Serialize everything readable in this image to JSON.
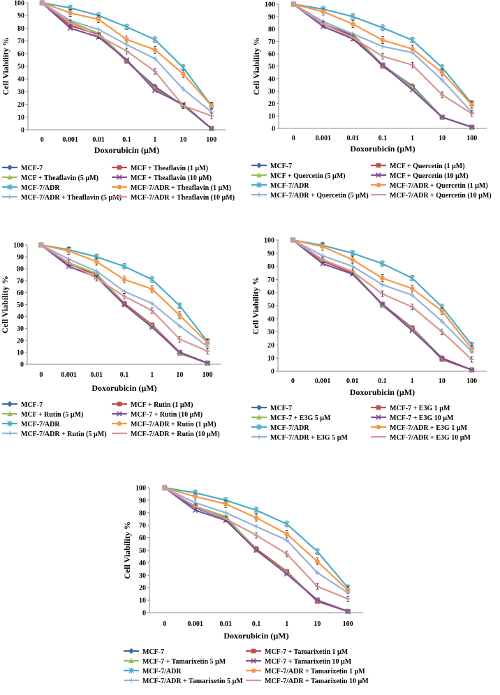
{
  "charts": [
    {
      "ylabel": "Cell Viability %",
      "xlabel": "Doxorubicin (µM)",
      "x_ticks": [
        "0",
        "0.001",
        "0.01",
        "0.1",
        "1",
        "10",
        "100"
      ],
      "y_ticks": [
        "0",
        "10",
        "20",
        "30",
        "40",
        "50",
        "60",
        "70",
        "80",
        "90",
        "100"
      ],
      "legend": [
        "MCF-7",
        "MCF + Theaflavin (1 µM)",
        "MCF + Theaflavin (5 µM)",
        "MCF + Theaflavin (10 µM)",
        "MCF-7/ADR",
        "MCF-7/ADR + Theaflavin (1 µM)",
        "MCF-7/ADR + Theaflavin (5 µM)",
        "MCF-7/ADR + Theaflavin (10 µM)"
      ]
    },
    {
      "ylabel": "Cell Viability %",
      "xlabel": "Doxorubicin (µM)",
      "x_ticks": [
        "0",
        "0.001",
        "0.01",
        "0.1",
        "1",
        "10",
        "100"
      ],
      "y_ticks": [
        "0",
        "10",
        "20",
        "30",
        "40",
        "50",
        "60",
        "70",
        "80",
        "90",
        "100"
      ],
      "legend": [
        "MCF-7",
        "MCF + Quercetin (1 µM)",
        "MCF + Quercetin (5 µM)",
        "MCF + Quercetin (10 µM)",
        "MCF-7/ADR",
        "MCF-7/ADR + Quercetin (1 µM)",
        "MCF-7/ADR + Quercetin (5 µM)",
        "MCF-7/ADR + Quercetin (10 µM)"
      ]
    },
    {
      "ylabel": "Cell Viability %",
      "xlabel": "Doxorubicin (µM)",
      "x_ticks": [
        "0",
        "0.001",
        "0.01",
        "0.1",
        "1",
        "10",
        "100"
      ],
      "y_ticks": [
        "0",
        "10",
        "20",
        "30",
        "40",
        "50",
        "60",
        "70",
        "80",
        "90",
        "100"
      ],
      "legend": [
        "MCF-7",
        "MCF + Rutin (1 µM)",
        "MCF + Rutin (5 µM)",
        "MCF-7 + Rutin (10 µM)",
        "MCF-7/ADR",
        "MCF-7/ADR + Rutin (1 µM)",
        "MCF-7/ADR + Rutin (5 µM)",
        "MCF-7/ADR + Rutin (10 µM)"
      ]
    },
    {
      "ylabel": "Cell Viability %",
      "xlabel": "Doxorubicin (µM)",
      "x_ticks": [
        "0",
        "0.001",
        "0.01",
        "0.1",
        "1",
        "10",
        "100"
      ],
      "y_ticks": [
        "0",
        "10",
        "20",
        "30",
        "40",
        "50",
        "60",
        "70",
        "80",
        "90",
        "100"
      ],
      "legend": [
        "MCF-7",
        "MCF-7 + E3G 1 µM",
        "MCF-7 + E3G 5 µM",
        "MCF-7 + E3G 10 µM",
        "MCF-7/ADR",
        "MCF-7/ADR + E3G 1 µM",
        "MCF-7/ADR + E3G 5 µM",
        "MCF-7/ADR + E3G 10 µM"
      ]
    },
    {
      "ylabel": "Cell Viability %",
      "xlabel": "Doxorubicin (µM)",
      "x_ticks": [
        "0",
        "0.001",
        "0.01",
        "0.1",
        "1",
        "10",
        "100"
      ],
      "y_ticks": [
        "0",
        "10",
        "20",
        "30",
        "40",
        "50",
        "60",
        "70",
        "80",
        "90",
        "100"
      ],
      "legend": [
        "MCF-7",
        "MCF-7 + Tamarixetin 1 µM",
        "MCF-7 + Tamarixetin 5 µM",
        "MCF-7 + Tamarixetin 10 µM",
        "MCF-7/ADR",
        "MCF-7/ADR + Tamarixetin 1 µM",
        "MCF-7/ADR + Tamarixetin 5 µM",
        "MCF-7/ADR + Tamarixetin 10 µM"
      ]
    }
  ],
  "series_colors": [
    "#3a6ea5",
    "#c0504d",
    "#9bbb59",
    "#7f4f9f",
    "#4bacc6",
    "#f79646",
    "#95b3d7",
    "#d99594"
  ],
  "series_markers": [
    "diamond",
    "square",
    "triangle",
    "x",
    "star",
    "circle",
    "plus",
    "dash"
  ],
  "chart_data": [
    {
      "type": "line",
      "title": "",
      "xlabel": "Doxorubicin (µM)",
      "ylabel": "Cell Viability %",
      "ylim": [
        0,
        100
      ],
      "categories": [
        "0",
        "0.001",
        "0.01",
        "0.1",
        "1",
        "10",
        "100"
      ],
      "series": [
        {
          "name": "MCF-7",
          "values": [
            100,
            82,
            75,
            54,
            34,
            19,
            1
          ]
        },
        {
          "name": "MCF + Theaflavin (1 µM)",
          "values": [
            100,
            82,
            75,
            54,
            33,
            19,
            1
          ]
        },
        {
          "name": "MCF + Theaflavin (5 µM)",
          "values": [
            100,
            85,
            76,
            55,
            32,
            19,
            1
          ]
        },
        {
          "name": "MCF + Theaflavin (10 µM)",
          "values": [
            100,
            80,
            73,
            55,
            31,
            20,
            1
          ]
        },
        {
          "name": "MCF-7/ADR",
          "values": [
            100,
            96,
            90,
            81,
            71,
            49,
            19
          ]
        },
        {
          "name": "MCF-7/ADR + Theaflavin (1 µM)",
          "values": [
            100,
            92,
            87,
            71,
            63,
            44,
            19
          ]
        },
        {
          "name": "MCF-7/ADR + Theaflavin (5 µM)",
          "values": [
            100,
            86,
            79,
            67,
            56,
            32,
            14
          ]
        },
        {
          "name": "MCF-7/ADR + Theaflavin (10 µM)",
          "values": [
            100,
            84,
            74,
            62,
            46,
            19,
            11
          ]
        }
      ]
    },
    {
      "type": "line",
      "title": "",
      "xlabel": "Doxorubicin (µM)",
      "ylabel": "Cell Viability %",
      "ylim": [
        0,
        100
      ],
      "categories": [
        "0",
        "0.001",
        "0.01",
        "0.1",
        "1",
        "10",
        "100"
      ],
      "series": [
        {
          "name": "MCF-7",
          "values": [
            100,
            84,
            75,
            51,
            34,
            9,
            1
          ]
        },
        {
          "name": "MCF + Quercetin (1 µM)",
          "values": [
            100,
            84,
            74,
            50,
            33,
            9,
            1
          ]
        },
        {
          "name": "MCF + Quercetin (5 µM)",
          "values": [
            100,
            86,
            76,
            51,
            33,
            9,
            1
          ]
        },
        {
          "name": "MCF + Quercetin (10 µM)",
          "values": [
            100,
            82,
            72,
            51,
            31,
            9,
            1
          ]
        },
        {
          "name": "MCF-7/ADR",
          "values": [
            100,
            96,
            90,
            81,
            71,
            49,
            20
          ]
        },
        {
          "name": "MCF-7/ADR + Quercetin (1 µM)",
          "values": [
            100,
            94,
            84,
            71,
            64,
            45,
            19
          ]
        },
        {
          "name": "MCF-7/ADR + Quercetin (5 µM)",
          "values": [
            100,
            86,
            76,
            66,
            61,
            39,
            13
          ]
        },
        {
          "name": "MCF-7/ADR + Quercetin (10 µM)",
          "values": [
            100,
            84,
            73,
            58,
            51,
            27,
            12
          ]
        }
      ]
    },
    {
      "type": "line",
      "title": "",
      "xlabel": "Doxorubicin (µM)",
      "ylabel": "Cell Viability %",
      "ylim": [
        0,
        100
      ],
      "categories": [
        "0",
        "0.001",
        "0.01",
        "0.1",
        "1",
        "10",
        "100"
      ],
      "series": [
        {
          "name": "MCF-7",
          "values": [
            100,
            84,
            75,
            51,
            32,
            9,
            1
          ]
        },
        {
          "name": "MCF + Rutin (1 µM)",
          "values": [
            100,
            84,
            75,
            51,
            33,
            10,
            1
          ]
        },
        {
          "name": "MCF + Rutin (5 µM)",
          "values": [
            100,
            85,
            76,
            50,
            32,
            9,
            1
          ]
        },
        {
          "name": "MCF-7 + Rutin (10 µM)",
          "values": [
            100,
            82,
            73,
            50,
            31,
            10,
            1
          ]
        },
        {
          "name": "MCF-7/ADR",
          "values": [
            100,
            96,
            90,
            82,
            71,
            49,
            19
          ]
        },
        {
          "name": "MCF-7/ADR + Rutin (1 µM)",
          "values": [
            100,
            95,
            86,
            71,
            63,
            41,
            18
          ]
        },
        {
          "name": "MCF-7/ADR + Rutin (5 µM)",
          "values": [
            100,
            88,
            78,
            61,
            51,
            32,
            15
          ]
        },
        {
          "name": "MCF-7/ADR + Rutin (10 µM)",
          "values": [
            100,
            85,
            72,
            57,
            45,
            21,
            11
          ]
        }
      ]
    },
    {
      "type": "line",
      "title": "",
      "xlabel": "Doxorubicin (µM)",
      "ylabel": "Cell Viability %",
      "ylim": [
        0,
        100
      ],
      "categories": [
        "0",
        "0.001",
        "0.01",
        "0.1",
        "1",
        "10",
        "100"
      ],
      "series": [
        {
          "name": "MCF-7",
          "values": [
            100,
            84,
            75,
            51,
            33,
            10,
            1
          ]
        },
        {
          "name": "MCF-7 + E3G 1 µM",
          "values": [
            100,
            84,
            75,
            51,
            33,
            9,
            1
          ]
        },
        {
          "name": "MCF-7 + E3G 5 µM",
          "values": [
            100,
            85,
            76,
            50,
            32,
            10,
            1
          ]
        },
        {
          "name": "MCF-7 + E3G 10 µM",
          "values": [
            100,
            82,
            74,
            51,
            31,
            10,
            1
          ]
        },
        {
          "name": "MCF-7/ADR",
          "values": [
            100,
            96,
            90,
            82,
            71,
            49,
            20
          ]
        },
        {
          "name": "MCF-7/ADR + E3G 1 µM",
          "values": [
            100,
            95,
            85,
            71,
            63,
            46,
            17
          ]
        },
        {
          "name": "MCF-7/ADR + E3G 5 µM",
          "values": [
            100,
            88,
            80,
            66,
            58,
            38,
            15
          ]
        },
        {
          "name": "MCF-7/ADR + E3G 10 µM",
          "values": [
            100,
            85,
            76,
            59,
            49,
            30,
            9
          ]
        }
      ]
    },
    {
      "type": "line",
      "title": "",
      "xlabel": "Doxorubicin (µM)",
      "ylabel": "Cell Viability %",
      "ylim": [
        0,
        100
      ],
      "categories": [
        "0",
        "0.001",
        "0.01",
        "0.1",
        "1",
        "10",
        "100"
      ],
      "series": [
        {
          "name": "MCF-7",
          "values": [
            100,
            84,
            75,
            51,
            32,
            10,
            1
          ]
        },
        {
          "name": "MCF-7 + Tamarixetin 1 µM",
          "values": [
            100,
            85,
            76,
            51,
            33,
            9,
            1
          ]
        },
        {
          "name": "MCF-7 + Tamarixetin 5 µM",
          "values": [
            100,
            85,
            77,
            50,
            32,
            10,
            1
          ]
        },
        {
          "name": "MCF-7 + Tamarixetin 10 µM",
          "values": [
            100,
            82,
            74,
            50,
            31,
            10,
            1
          ]
        },
        {
          "name": "MCF-7/ADR",
          "values": [
            100,
            96,
            90,
            82,
            71,
            49,
            20
          ]
        },
        {
          "name": "MCF-7/ADR + Tamarixetin 1 µM",
          "values": [
            100,
            93,
            87,
            76,
            63,
            41,
            18
          ]
        },
        {
          "name": "MCF-7/ADR + Tamarixetin 5 µM",
          "values": [
            100,
            88,
            80,
            69,
            58,
            32,
            16
          ]
        },
        {
          "name": "MCF-7/ADR + Tamarixetin 10 µM",
          "values": [
            100,
            85,
            75,
            62,
            47,
            21,
            11
          ]
        }
      ]
    }
  ]
}
